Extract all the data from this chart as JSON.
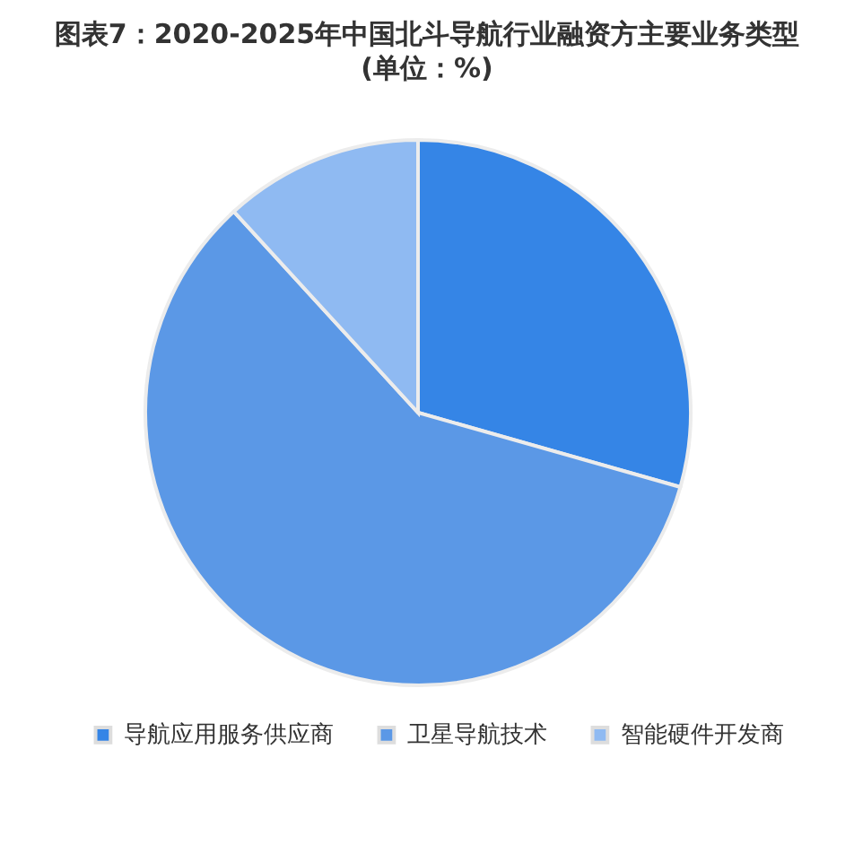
{
  "chart_data": {
    "type": "pie",
    "title": "图表7：2020-2025年中国北斗导航行业融资方主要业务类型(单位：%)",
    "categories": [
      "导航应用服务供应商",
      "卫星导航技术",
      "智能硬件开发商"
    ],
    "values": [
      29.4,
      58.8,
      11.8
    ],
    "colors": [
      "#3585e6",
      "#5b98e6",
      "#8fbaf2"
    ],
    "legend": "bottom"
  }
}
